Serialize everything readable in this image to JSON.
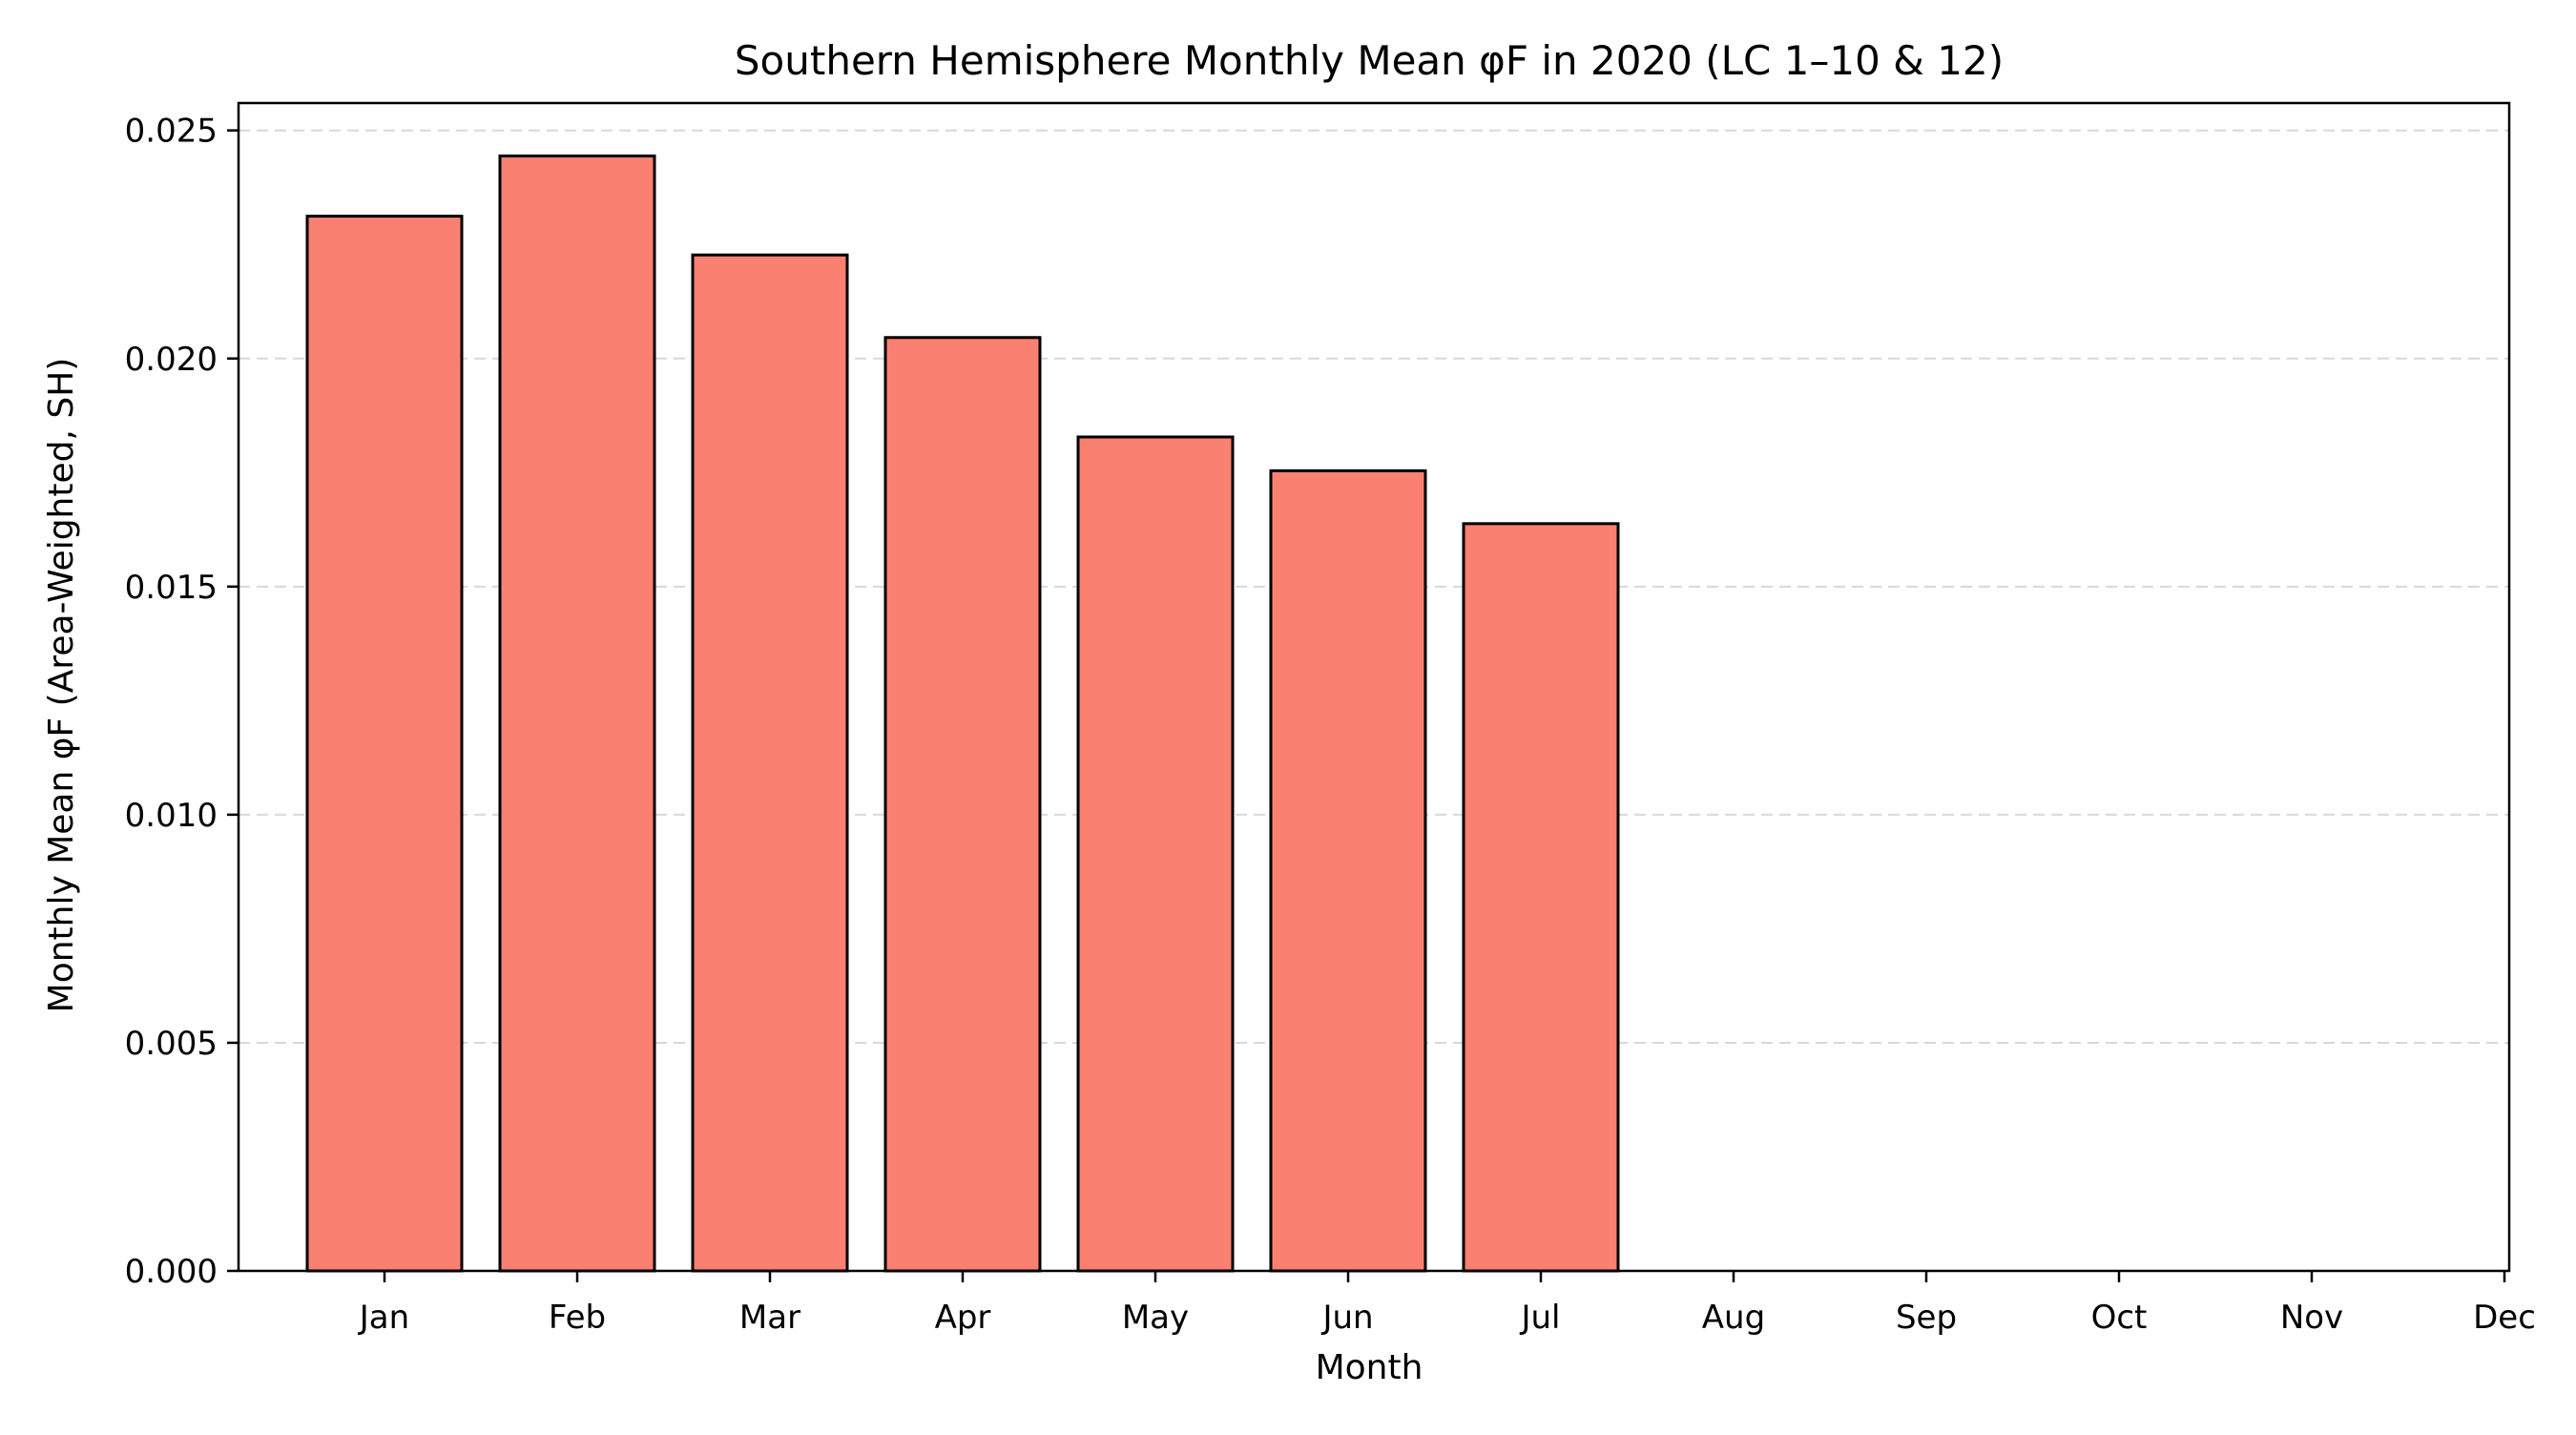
{
  "chart_data": {
    "type": "bar",
    "title": "Southern Hemisphere Monthly Mean φF in 2020 (LC 1–10 & 12)",
    "xlabel": "Month",
    "ylabel": "Monthly Mean φF (Area-Weighted, SH)",
    "categories": [
      "Jan",
      "Feb",
      "Mar",
      "Apr",
      "May",
      "Jun",
      "Jul",
      "Aug",
      "Sep",
      "Oct",
      "Nov",
      "Dec"
    ],
    "values": [
      0.02312,
      0.02444,
      0.02227,
      0.02046,
      0.01828,
      0.01754,
      0.01638,
      null,
      null,
      null,
      null,
      null
    ],
    "ylim": [
      0,
      0.0256
    ],
    "yticks": [
      0.0,
      0.005,
      0.01,
      0.015,
      0.02,
      0.025
    ],
    "ytick_labels": [
      "0.000",
      "0.005",
      "0.010",
      "0.015",
      "0.020",
      "0.025"
    ],
    "grid": "y-dashed",
    "bar_color": "#fa8072",
    "bar_edge_color": "#000000",
    "grid_color": "#cccccc"
  }
}
